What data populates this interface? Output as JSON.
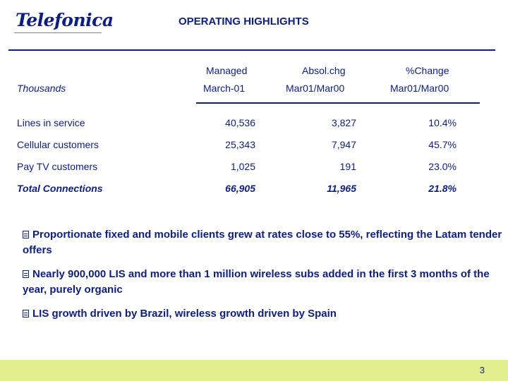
{
  "header": {
    "logo_text": "Telefonica",
    "title": "OPERATING HIGHLIGHTS"
  },
  "table": {
    "unit_label": "Thousands",
    "columns": [
      {
        "line1": "Managed",
        "line2": "March-01"
      },
      {
        "line1": "Absol.chg",
        "line2": "Mar01/Mar00"
      },
      {
        "line1": "%Change",
        "line2": "Mar01/Mar00"
      }
    ],
    "rows": [
      {
        "label": "Lines in service",
        "values": [
          "40,536",
          "3,827",
          "10.4%"
        ]
      },
      {
        "label": "Cellular customers",
        "values": [
          "25,343",
          "7,947",
          "45.7%"
        ]
      },
      {
        "label": "Pay TV customers",
        "values": [
          "1,025",
          "191",
          "23.0%"
        ]
      },
      {
        "label": "Total Connections",
        "values": [
          "66,905",
          "11,965",
          "21.8%"
        ]
      }
    ]
  },
  "bullets": [
    "Proportionate fixed and mobile clients grew at rates close to 55%, reflecting the Latam tender offers",
    "Nearly 900,000 LIS and more than 1 million wireless subs added in the first 3 months of the year, purely organic",
    "LIS growth driven by Brazil, wireless growth driven by Spain"
  ],
  "footer": {
    "page_number": "3",
    "band_color": "#e3f08e"
  }
}
